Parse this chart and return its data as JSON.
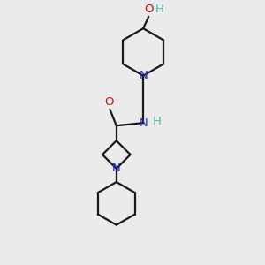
{
  "background_color": "#ebebeb",
  "bond_color": "#1a1a1a",
  "N_color": "#2424cc",
  "O_color": "#cc1010",
  "H_color": "#4db8b8",
  "figsize": [
    3.0,
    3.0
  ],
  "dpi": 100,
  "xlim": [
    -1.3,
    1.5
  ],
  "ylim": [
    -2.4,
    2.4
  ]
}
